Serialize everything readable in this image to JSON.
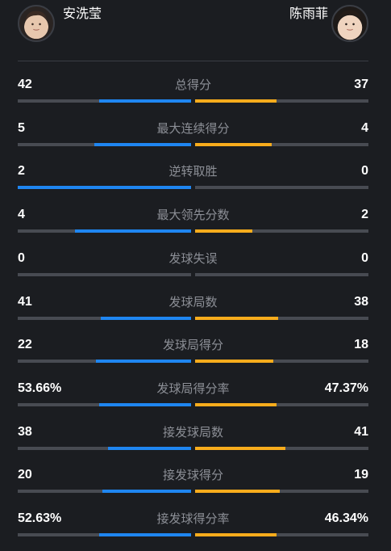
{
  "players": {
    "left": {
      "name": "安洗莹",
      "avatar_icon": "player-photo-icon"
    },
    "right": {
      "name": "陈雨菲",
      "avatar_icon": "player-photo-icon"
    }
  },
  "colors": {
    "left": "#1f86f1",
    "right": "#f8ac1c",
    "track": "#484b52",
    "background": "#1b1d21"
  },
  "stats": [
    {
      "label": "总得分",
      "left": "42",
      "right": "37",
      "left_share": 0.53,
      "right_share": 0.47
    },
    {
      "label": "最大连续得分",
      "left": "5",
      "right": "4",
      "left_share": 0.56,
      "right_share": 0.44
    },
    {
      "label": "逆转取胜",
      "left": "2",
      "right": "0",
      "left_share": 1.0,
      "right_share": 0.0
    },
    {
      "label": "最大领先分数",
      "left": "4",
      "right": "2",
      "left_share": 0.67,
      "right_share": 0.33
    },
    {
      "label": "发球失误",
      "left": "0",
      "right": "0",
      "left_share": 0.0,
      "right_share": 0.0
    },
    {
      "label": "发球局数",
      "left": "41",
      "right": "38",
      "left_share": 0.52,
      "right_share": 0.48
    },
    {
      "label": "发球局得分",
      "left": "22",
      "right": "18",
      "left_share": 0.55,
      "right_share": 0.45
    },
    {
      "label": "发球局得分率",
      "left": "53.66%",
      "right": "47.37%",
      "left_share": 0.53,
      "right_share": 0.47
    },
    {
      "label": "接发球局数",
      "left": "38",
      "right": "41",
      "left_share": 0.48,
      "right_share": 0.52
    },
    {
      "label": "接发球得分",
      "left": "20",
      "right": "19",
      "left_share": 0.51,
      "right_share": 0.49
    },
    {
      "label": "接发球得分率",
      "left": "52.63%",
      "right": "46.34%",
      "left_share": 0.53,
      "right_share": 0.47
    }
  ]
}
